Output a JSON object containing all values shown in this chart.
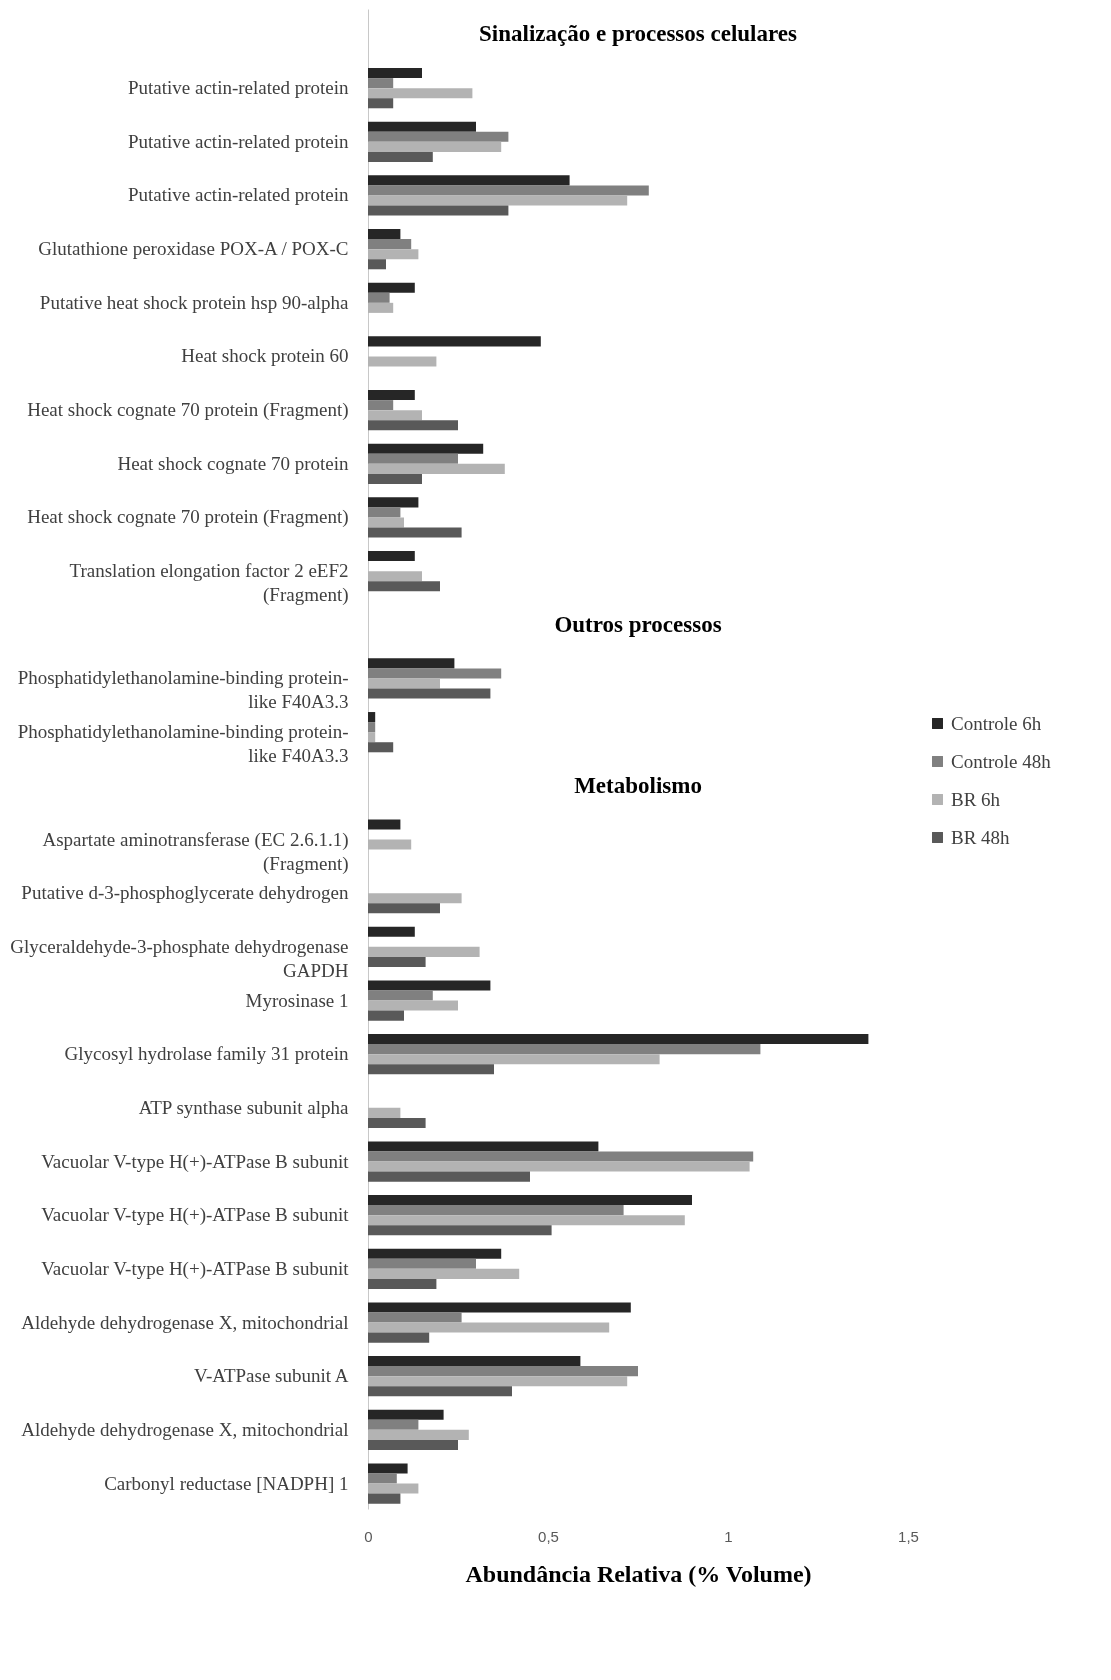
{
  "chart_data": {
    "type": "bar",
    "orientation": "horizontal",
    "xlabel": "Abundância Relativa (% Volume)",
    "annotations": [
      "Sinalização e processos celulares",
      "Outros processos",
      "Metabolismo"
    ],
    "categories": [
      null,
      "Putative actin-related protein",
      "Putative actin-related protein",
      "Putative actin-related protein",
      "Glutathione peroxidase POX-A / POX-C",
      "Putative heat shock protein hsp 90-alpha",
      "Heat shock protein 60",
      "Heat shock cognate 70 protein (Fragment)",
      "Heat shock cognate 70 protein",
      "Heat shock cognate 70 protein (Fragment)",
      "Translation elongation factor 2  eEF2\n(Fragment)",
      null,
      "Phosphatidylethanolamine-binding protein-\nlike F40A3.3",
      "Phosphatidylethanolamine-binding protein-\nlike F40A3.3",
      null,
      "Aspartate aminotransferase (EC 2.6.1.1)\n(Fragment)",
      "Putative d-3-phosphoglycerate dehydrogen",
      "Glyceraldehyde-3-phosphate dehydrogenase\nGAPDH",
      "Myrosinase 1",
      "Glycosyl hydrolase family 31 protein",
      "ATP synthase subunit alpha",
      "Vacuolar V-type H(+)-ATPase B subunit",
      "Vacuolar V-type H(+)-ATPase B subunit",
      "Vacuolar V-type H(+)-ATPase B subunit",
      "Aldehyde dehydrogenase X, mitochondrial",
      "V-ATPase subunit A",
      "Aldehyde dehydrogenase X, mitochondrial",
      "Carbonyl reductase [NADPH] 1"
    ],
    "series": [
      {
        "name": "Controle 6h",
        "color": "#262626",
        "values": [
          null,
          0.15,
          0.3,
          0.56,
          0.09,
          0.13,
          0.48,
          0.13,
          0.32,
          0.14,
          0.13,
          null,
          0.24,
          0.02,
          null,
          0.09,
          null,
          0.13,
          0.34,
          1.39,
          null,
          0.64,
          0.9,
          0.37,
          0.73,
          0.59,
          0.21,
          0.11
        ]
      },
      {
        "name": "Controle 48h",
        "color": "#808080",
        "values": [
          null,
          0.07,
          0.39,
          0.78,
          0.12,
          0.06,
          null,
          0.07,
          0.25,
          0.09,
          null,
          null,
          0.37,
          0.02,
          null,
          null,
          null,
          null,
          0.18,
          1.09,
          null,
          1.07,
          0.71,
          0.3,
          0.26,
          0.75,
          0.14,
          0.08
        ]
      },
      {
        "name": "BR 6h",
        "color": "#b3b3b3",
        "values": [
          null,
          0.29,
          0.37,
          0.72,
          0.14,
          0.07,
          0.19,
          0.15,
          0.38,
          0.1,
          0.15,
          null,
          0.2,
          0.02,
          null,
          0.12,
          0.26,
          0.31,
          0.25,
          0.81,
          0.09,
          1.06,
          0.88,
          0.42,
          0.67,
          0.72,
          0.28,
          0.14
        ]
      },
      {
        "name": "BR 48h",
        "color": "#595959",
        "values": [
          null,
          0.07,
          0.18,
          0.39,
          0.05,
          null,
          null,
          0.25,
          0.15,
          0.26,
          0.2,
          null,
          0.34,
          0.07,
          null,
          null,
          0.2,
          0.16,
          0.1,
          0.35,
          0.16,
          0.45,
          0.51,
          0.19,
          0.17,
          0.4,
          0.25,
          0.09
        ]
      }
    ],
    "xlim": [
      0,
      1.5
    ],
    "xticks": [
      0,
      {
        "value": 0.5,
        "label": "0,5"
      },
      1,
      {
        "value": 1.5,
        "label": "1,5"
      }
    ],
    "grid": false,
    "legend": "right"
  }
}
